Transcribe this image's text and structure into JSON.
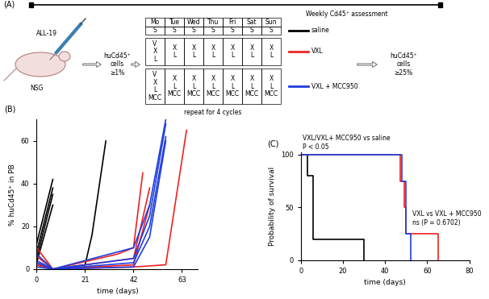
{
  "diagram": {
    "panel_label": "(A)",
    "header": "Weekly Cd45⁺ assessment",
    "mouse": {
      "injection": "ALL-19",
      "strain": "NSG"
    },
    "start": [
      "huCd45⁺",
      "cells",
      "≥1%"
    ],
    "end": [
      "huCd45⁺",
      "cells",
      "≥25%"
    ],
    "schedule": {
      "days": [
        "Mo",
        "Tue",
        "Wed",
        "Thu",
        "Fri",
        "Sat",
        "Sun"
      ],
      "rows": [
        {
          "name": "saline",
          "color": "#000000",
          "cells": [
            [
              "S"
            ],
            [
              "S"
            ],
            [
              "S"
            ],
            [
              "S"
            ],
            [
              "S"
            ],
            [
              "S"
            ],
            [
              "S"
            ]
          ]
        },
        {
          "name": "VXL",
          "color": "#ee2222",
          "cells": [
            [
              "V",
              "X",
              "L"
            ],
            [
              "X",
              "L"
            ],
            [
              "X",
              "L"
            ],
            [
              "X",
              "L"
            ],
            [
              "X",
              "L"
            ],
            [
              "X",
              "L"
            ],
            [
              "X",
              "L"
            ]
          ]
        },
        {
          "name": "VXL + MCC950",
          "color": "#1f3ee0",
          "cells": [
            [
              "V",
              "X",
              "L",
              "MCC"
            ],
            [
              "X",
              "L",
              "MCC"
            ],
            [
              "X",
              "L",
              "MCC"
            ],
            [
              "X",
              "L",
              "MCC"
            ],
            [
              "X",
              "L",
              "MCC"
            ],
            [
              "X",
              "L",
              "MCC"
            ],
            [
              "X",
              "L",
              "MCC"
            ]
          ]
        }
      ]
    },
    "repeat": "repeat for 4 cycles"
  },
  "chart_data": [
    {
      "type": "line",
      "panel_label": "(B)",
      "x_label": "time (days)",
      "y_label": "% huCd45⁺ in PB",
      "xlim": [
        0,
        70
      ],
      "xticks": [
        0,
        21,
        42,
        63
      ],
      "ylim": [
        0,
        70
      ],
      "yticks": [
        0,
        20,
        40,
        60
      ],
      "series": [
        {
          "color": "#000000",
          "x": [
            0,
            7
          ],
          "values": [
            12,
            42
          ]
        },
        {
          "color": "#000000",
          "x": [
            0,
            7
          ],
          "values": [
            8,
            38
          ]
        },
        {
          "color": "#000000",
          "x": [
            0,
            7
          ],
          "values": [
            5,
            35
          ]
        },
        {
          "color": "#000000",
          "x": [
            0,
            7
          ],
          "values": [
            3,
            30
          ]
        },
        {
          "color": "#000000",
          "x": [
            0,
            7,
            21,
            24,
            30
          ],
          "values": [
            2,
            0,
            2,
            16,
            60
          ]
        },
        {
          "color": "#ee2222",
          "x": [
            0,
            7,
            35,
            42,
            46
          ],
          "values": [
            10,
            0,
            7,
            10,
            45
          ]
        },
        {
          "color": "#ee2222",
          "x": [
            0,
            7,
            42,
            49
          ],
          "values": [
            6,
            0,
            5,
            38
          ]
        },
        {
          "color": "#ee2222",
          "x": [
            0,
            7,
            42,
            49
          ],
          "values": [
            3,
            0,
            2,
            30
          ]
        },
        {
          "color": "#ee2222",
          "x": [
            0,
            7,
            42,
            56,
            65
          ],
          "values": [
            2,
            0,
            1,
            2,
            65
          ]
        },
        {
          "color": "#1f3ee0",
          "x": [
            0,
            7,
            42,
            49,
            56
          ],
          "values": [
            7,
            0,
            10,
            30,
            70
          ]
        },
        {
          "color": "#1f3ee0",
          "x": [
            0,
            7,
            42,
            49,
            56
          ],
          "values": [
            4,
            0,
            5,
            25,
            68
          ]
        },
        {
          "color": "#1f3ee0",
          "x": [
            0,
            7,
            42,
            49,
            56
          ],
          "values": [
            3,
            0,
            3,
            20,
            62
          ]
        },
        {
          "color": "#1f3ee0",
          "x": [
            0,
            7,
            42,
            49,
            56
          ],
          "values": [
            1,
            0,
            1,
            15,
            60
          ]
        }
      ]
    },
    {
      "type": "line",
      "line_style": "steps",
      "panel_label": "(C)",
      "x_label": "time (days)",
      "y_label": "Probability of survival",
      "xlim": [
        0,
        80
      ],
      "xticks": [
        0,
        20,
        40,
        60,
        80
      ],
      "ylim": [
        0,
        102
      ],
      "yticks": [
        0,
        50,
        100
      ],
      "annotations": [
        {
          "text": "VXL/VXL+ MCC950 vs saline",
          "x": 1,
          "y": 116
        },
        {
          "text": "P < 0.05",
          "x": 1,
          "y": 107
        },
        {
          "text": "VXL vs VXL + MCC950",
          "x": 53,
          "y": 44
        },
        {
          "text": "ns (P = 0.6702)",
          "x": 53,
          "y": 35
        }
      ],
      "series": [
        {
          "color": "#000000",
          "x": [
            0,
            3,
            6,
            30
          ],
          "values": [
            100,
            80,
            20,
            0
          ]
        },
        {
          "color": "#ee2222",
          "x": [
            0,
            47,
            49,
            50,
            65
          ],
          "values": [
            100,
            75,
            50,
            25,
            0
          ]
        },
        {
          "color": "#1f3ee0",
          "x": [
            0,
            48,
            50,
            52
          ],
          "values": [
            100,
            75,
            25,
            0
          ]
        }
      ]
    }
  ]
}
